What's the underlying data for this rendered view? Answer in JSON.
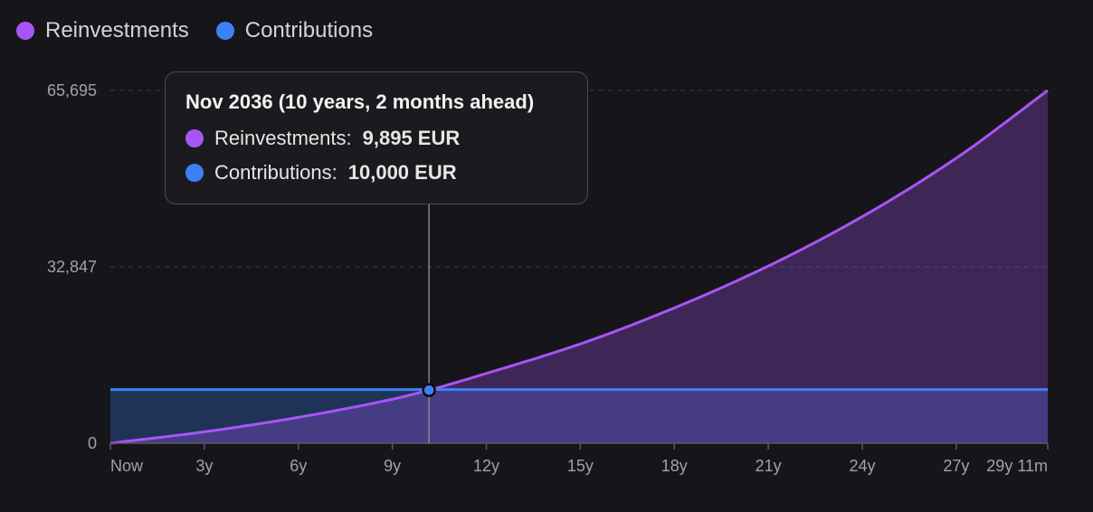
{
  "legend": {
    "reinvestments": "Reinvestments",
    "contributions": "Contributions"
  },
  "colors": {
    "reinvestments": "#a855f7",
    "contributions": "#3b82f6",
    "background": "#16161a"
  },
  "tooltip": {
    "title": "Nov 2036 (10 years, 2 months ahead)",
    "reinvestments_label": "Reinvestments:",
    "reinvestments_value": "9,895 EUR",
    "contributions_label": "Contributions:",
    "contributions_value": "10,000 EUR"
  },
  "chart_data": {
    "type": "area",
    "x_tick_labels": [
      "Now",
      "3y",
      "6y",
      "9y",
      "12y",
      "15y",
      "18y",
      "21y",
      "24y",
      "27y",
      "29y 11m"
    ],
    "x_ticks_years": [
      0,
      3,
      6,
      9,
      12,
      15,
      18,
      21,
      24,
      27,
      29.92
    ],
    "y_tick_labels": [
      "0",
      "32,847",
      "65,695"
    ],
    "y_ticks": [
      0,
      32847,
      65695
    ],
    "ylim": [
      0,
      65695
    ],
    "xlim_years": [
      0,
      29.92
    ],
    "grid": true,
    "legend_position": "top-left",
    "highlight": {
      "x_years": 10.17,
      "y": 9895
    },
    "series": [
      {
        "name": "Reinvestments",
        "x_years": [
          0,
          3,
          6,
          9,
          10.17,
          12,
          15,
          18,
          21,
          24,
          27,
          29.92
        ],
        "values": [
          0,
          2130,
          4830,
          8200,
          9895,
          13000,
          18500,
          25200,
          33000,
          42200,
          53100,
          65695
        ]
      },
      {
        "name": "Contributions",
        "x_years": [
          0,
          29.92
        ],
        "values": [
          10000,
          10000
        ]
      }
    ]
  }
}
